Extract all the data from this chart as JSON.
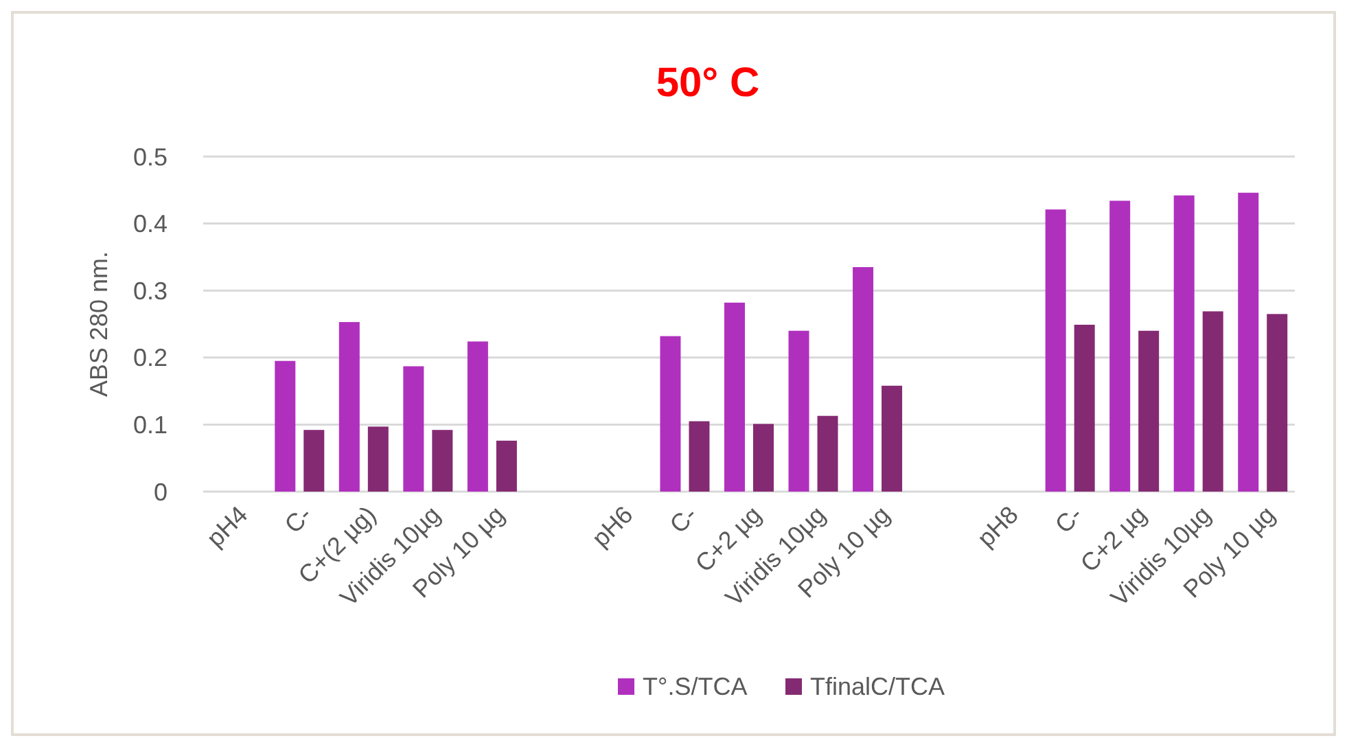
{
  "chart_data": {
    "type": "bar",
    "title": "50° C",
    "ylabel": "ABS 280 nm.",
    "categories": [
      "pH4",
      "C-",
      "C+(2 µg)",
      "Viridis 10µg",
      "Poly 10 µg",
      null,
      "pH6",
      "C-",
      "C+2 µg",
      "Viridis 10µg",
      "Poly 10 µg",
      null,
      "pH8",
      "C-",
      "C+2 µg",
      "Viridis 10µg",
      "Poly 10 µg"
    ],
    "series": [
      {
        "name": "T°.S/TCA",
        "color": "#b030be",
        "values": [
          null,
          0.195,
          0.253,
          0.187,
          0.224,
          null,
          null,
          0.232,
          0.282,
          0.24,
          0.335,
          null,
          null,
          0.421,
          0.434,
          0.442,
          0.446
        ]
      },
      {
        "name": "TfinalC/TCA",
        "color": "#842a72",
        "values": [
          null,
          0.092,
          0.097,
          0.092,
          0.076,
          null,
          null,
          0.105,
          0.101,
          0.113,
          0.158,
          null,
          null,
          0.249,
          0.24,
          0.269,
          0.265
        ]
      }
    ],
    "ylim": [
      0,
      0.5
    ],
    "yticks": [
      {
        "value": 0,
        "label": "0"
      },
      0.1,
      0.2,
      0.3,
      0.4,
      0.5
    ],
    "grid": "y",
    "legend": "bottom"
  }
}
